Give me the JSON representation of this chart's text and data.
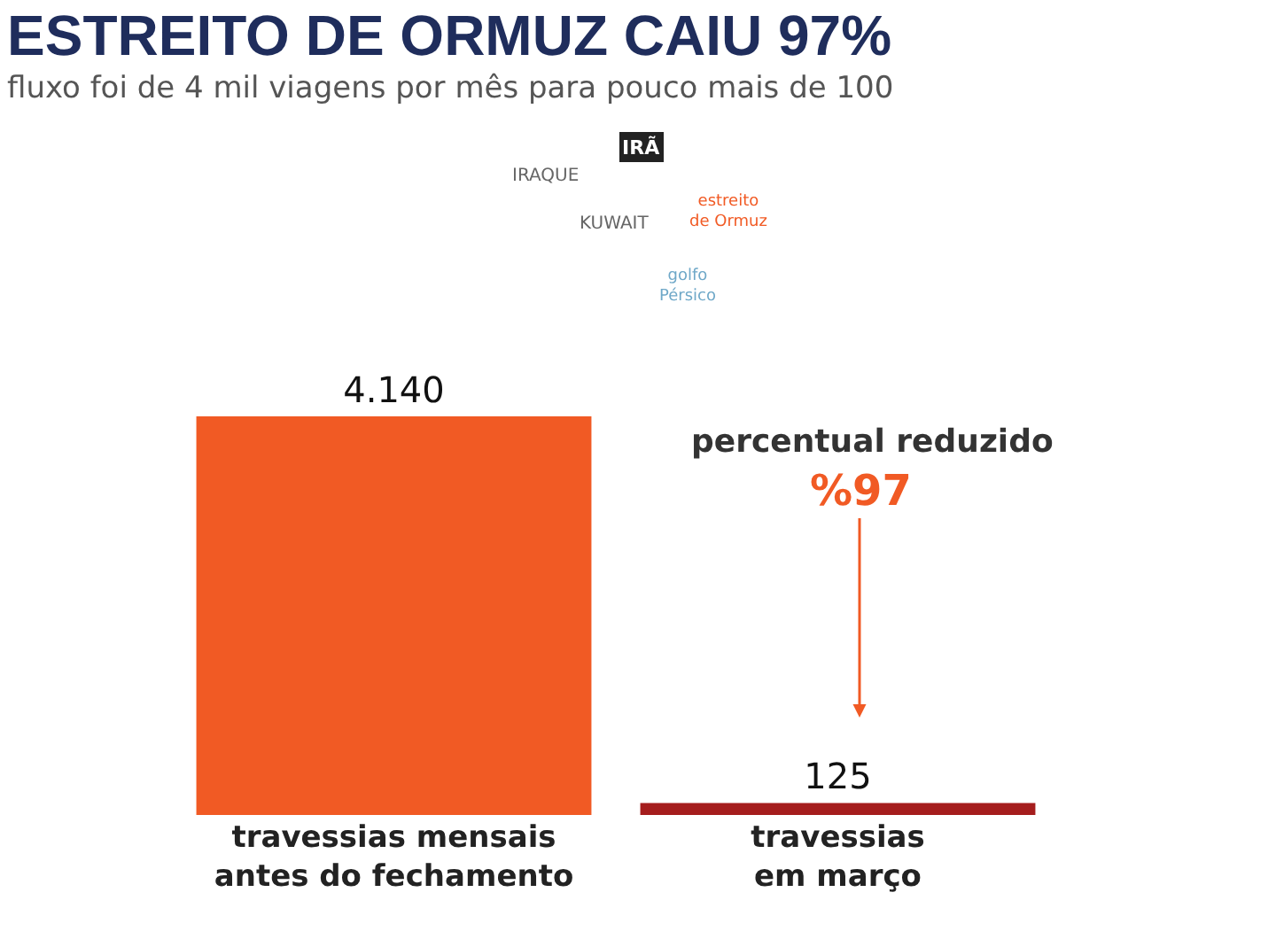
{
  "chart_data": {
    "type": "bar",
    "title": "ESTREITO DE ORMUZ CAIU 97%",
    "subtitle": "fluxo foi de 4 mil viagens por mês para pouco mais de 100",
    "categories": [
      "travessias mensais antes do fechamento",
      "travessias em março"
    ],
    "values": [
      4140,
      125
    ],
    "colors": [
      "#f15a24",
      "#a51d1d"
    ],
    "value_labels": [
      "4.140",
      "125"
    ],
    "annotations": [
      "IRAQUE",
      "KUWAIT",
      "IRÃ",
      "estreito de Ormuz",
      "golfo Pérsico",
      "percentual reduzido",
      "%97"
    ]
  }
}
